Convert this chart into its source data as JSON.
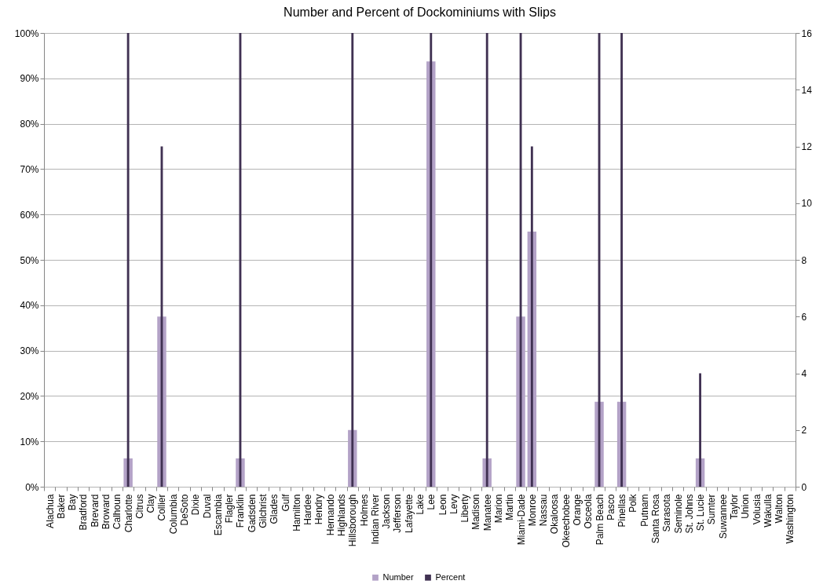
{
  "chart_data": {
    "type": "bar",
    "title": "Number and Percent of Dockominiums with Slips",
    "categories": [
      "Alachua",
      "Baker",
      "Bay",
      "Bradford",
      "Brevard",
      "Broward",
      "Calhoun",
      "Charlotte",
      "Citrus",
      "Clay",
      "Collier",
      "Columbia",
      "DeSoto",
      "Dixie",
      "Duval",
      "Escambia",
      "Flagler",
      "Franklin",
      "Gadsden",
      "Gilchrist",
      "Glades",
      "Gulf",
      "Hamilton",
      "Hardee",
      "Hendry",
      "Hernando",
      "Highlands",
      "Hillsborough",
      "Holmes",
      "Indian River",
      "Jackson",
      "Jefferson",
      "Lafayette",
      "Lake",
      "Lee",
      "Leon",
      "Levy",
      "Liberty",
      "Madison",
      "Manatee",
      "Marion",
      "Martin",
      "Miami-Dade",
      "Monroe",
      "Nassau",
      "Okaloosa",
      "Okeechobee",
      "Orange",
      "Osceola",
      "Palm Beach",
      "Pasco",
      "Pinellas",
      "Polk",
      "Putnam",
      "Santa Rosa",
      "Sarasota",
      "Seminole",
      "St. Johns",
      "St. Lucie",
      "Sumter",
      "Suwannee",
      "Taylor",
      "Union",
      "Volusia",
      "Wakulla",
      "Walton",
      "Washington"
    ],
    "series": [
      {
        "name": "Number",
        "color": "#b3a2c7",
        "axis": "y2",
        "values": [
          0,
          0,
          0,
          0,
          0,
          0,
          0,
          1,
          0,
          0,
          6,
          0,
          0,
          0,
          0,
          0,
          0,
          1,
          0,
          0,
          0,
          0,
          0,
          0,
          0,
          0,
          0,
          2,
          0,
          0,
          0,
          0,
          0,
          0,
          15,
          0,
          0,
          0,
          0,
          1,
          0,
          0,
          6,
          9,
          0,
          0,
          0,
          0,
          0,
          3,
          0,
          3,
          0,
          0,
          0,
          0,
          0,
          0,
          1,
          0,
          0,
          0,
          0,
          0,
          0,
          0,
          0
        ]
      },
      {
        "name": "Percent",
        "color": "#403152",
        "values": [
          0,
          0,
          0,
          0,
          0,
          0,
          0,
          100,
          0,
          0,
          75,
          0,
          0,
          0,
          0,
          0,
          0,
          100,
          0,
          0,
          0,
          0,
          0,
          0,
          0,
          0,
          0,
          100,
          0,
          0,
          0,
          0,
          0,
          0,
          100,
          0,
          0,
          0,
          0,
          100,
          0,
          0,
          100,
          75,
          0,
          0,
          0,
          0,
          0,
          100,
          0,
          100,
          0,
          0,
          0,
          0,
          0,
          0,
          25,
          0,
          0,
          0,
          0,
          0,
          0,
          0,
          0
        ]
      }
    ],
    "ylim": [
      0,
      100
    ],
    "yticks": [
      {
        "value": 0,
        "label": "0%"
      },
      {
        "value": 10,
        "label": "10%"
      },
      {
        "value": 20,
        "label": "20%"
      },
      {
        "value": 30,
        "label": "30%"
      },
      {
        "value": 40,
        "label": "40%"
      },
      {
        "value": 50,
        "label": "50%"
      },
      {
        "value": 60,
        "label": "60%"
      },
      {
        "value": 70,
        "label": "70%"
      },
      {
        "value": 80,
        "label": "80%"
      },
      {
        "value": 90,
        "label": "90%"
      },
      {
        "value": 100,
        "label": "100%"
      }
    ],
    "y2lim": [
      0,
      16
    ],
    "y2ticks": [
      0,
      2,
      4,
      6,
      8,
      10,
      12,
      14,
      16
    ],
    "grid": "y",
    "legend": "bottom"
  }
}
